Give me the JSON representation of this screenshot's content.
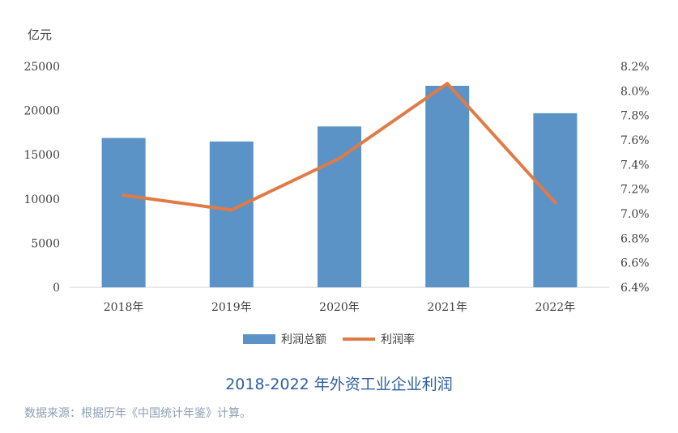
{
  "chart_data": {
    "type": "bar",
    "title": "2018-2022 年外资工业企业利润",
    "source": "数据来源：根据历年《中国统计年鉴》计算。",
    "left_axis_unit": "亿元",
    "categories": [
      "2018年",
      "2019年",
      "2020年",
      "2021年",
      "2022年"
    ],
    "ylim_left": [
      0,
      25000
    ],
    "yticks_left": [
      "0",
      "5000",
      "10000",
      "15000",
      "20000",
      "25000"
    ],
    "ylim_right": [
      6.4,
      8.2
    ],
    "yticks_right": [
      "6.4%",
      "6.6%",
      "6.8%",
      "7.0%",
      "7.2%",
      "7.4%",
      "7.6%",
      "7.8%",
      "8.0%",
      "8.2%"
    ],
    "series": [
      {
        "name": "利润总额",
        "type": "bar",
        "axis": "left",
        "color": "#5b93c6",
        "values": [
          16900,
          16500,
          18200,
          22800,
          19700
        ]
      },
      {
        "name": "利润率",
        "type": "line",
        "axis": "right",
        "color": "#e07b45",
        "values": [
          7.15,
          7.03,
          7.45,
          8.06,
          7.09
        ]
      }
    ],
    "legend_position": "bottom"
  }
}
